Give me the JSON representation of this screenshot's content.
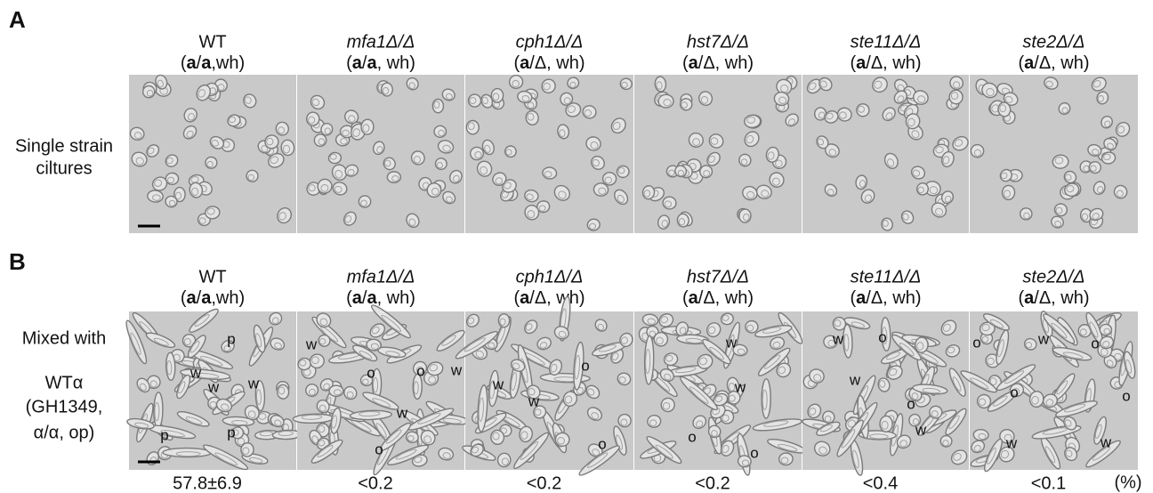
{
  "panel_a": {
    "letter": "A",
    "row_label": [
      "Single strain",
      "ciltures"
    ],
    "columns": [
      {
        "gene": "WT",
        "genotype": [
          {
            "text": "("
          },
          {
            "text": "a",
            "bold": true
          },
          {
            "text": "/"
          },
          {
            "text": "a",
            "bold": true
          },
          {
            "text": ",wh)"
          }
        ]
      },
      {
        "gene": "mfa1Δ/Δ",
        "genotype": [
          {
            "text": "("
          },
          {
            "text": "a",
            "bold": true
          },
          {
            "text": "/"
          },
          {
            "text": "a",
            "bold": true
          },
          {
            "text": ", wh)"
          }
        ]
      },
      {
        "gene": "cph1Δ/Δ",
        "genotype": [
          {
            "text": "("
          },
          {
            "text": "a",
            "bold": true
          },
          {
            "text": "/Δ, wh)"
          }
        ]
      },
      {
        "gene": "hst7Δ/Δ",
        "genotype": [
          {
            "text": "("
          },
          {
            "text": "a",
            "bold": true
          },
          {
            "text": "/Δ, wh)"
          }
        ]
      },
      {
        "gene": "ste11Δ/Δ",
        "genotype": [
          {
            "text": "("
          },
          {
            "text": "a",
            "bold": true
          },
          {
            "text": "/Δ, wh)"
          }
        ]
      },
      {
        "gene": "ste2Δ/Δ",
        "genotype": [
          {
            "text": "("
          },
          {
            "text": "a",
            "bold": true
          },
          {
            "text": "/Δ, wh)"
          }
        ]
      }
    ]
  },
  "panel_b": {
    "letter": "B",
    "row_label": [
      "Mixed with",
      "WTα",
      "(GH1349,",
      "α/α, op)"
    ],
    "columns": [
      {
        "gene": "WT",
        "genotype": [
          {
            "text": "("
          },
          {
            "text": "a",
            "bold": true
          },
          {
            "text": "/"
          },
          {
            "text": "a",
            "bold": true
          },
          {
            "text": ",wh)"
          }
        ],
        "annotations": [
          "p",
          "w",
          "w",
          "w",
          "p",
          "p"
        ],
        "percent": "57.8±6.9"
      },
      {
        "gene": "mfa1Δ/Δ",
        "genotype": [
          {
            "text": "("
          },
          {
            "text": "a",
            "bold": true
          },
          {
            "text": "/"
          },
          {
            "text": "a",
            "bold": true
          },
          {
            "text": ", wh)"
          }
        ],
        "annotations": [
          "w",
          "o",
          "o",
          "w",
          "w",
          "o"
        ],
        "percent": "<0.2"
      },
      {
        "gene": "cph1Δ/Δ",
        "genotype": [
          {
            "text": "("
          },
          {
            "text": "a",
            "bold": true
          },
          {
            "text": "/Δ, wh)"
          }
        ],
        "annotations": [
          "o",
          "w",
          "w",
          "o"
        ],
        "percent": "<0.2"
      },
      {
        "gene": "hst7Δ/Δ",
        "genotype": [
          {
            "text": "("
          },
          {
            "text": "a",
            "bold": true
          },
          {
            "text": "/Δ, wh)"
          }
        ],
        "annotations": [
          "w",
          "w",
          "o",
          "o"
        ],
        "percent": "<0.2"
      },
      {
        "gene": "ste11Δ/Δ",
        "genotype": [
          {
            "text": "("
          },
          {
            "text": "a",
            "bold": true
          },
          {
            "text": "/Δ, wh)"
          }
        ],
        "annotations": [
          "w",
          "o",
          "w",
          "o",
          "w"
        ],
        "percent": "<0.4"
      },
      {
        "gene": "ste2Δ/Δ",
        "genotype": [
          {
            "text": "("
          },
          {
            "text": "a",
            "bold": true
          },
          {
            "text": "/Δ, wh)"
          }
        ],
        "annotations": [
          "o",
          "w",
          "o",
          "o",
          "o",
          "w",
          "w"
        ],
        "percent": "<0.1"
      }
    ],
    "percent_unit": "(%)"
  }
}
